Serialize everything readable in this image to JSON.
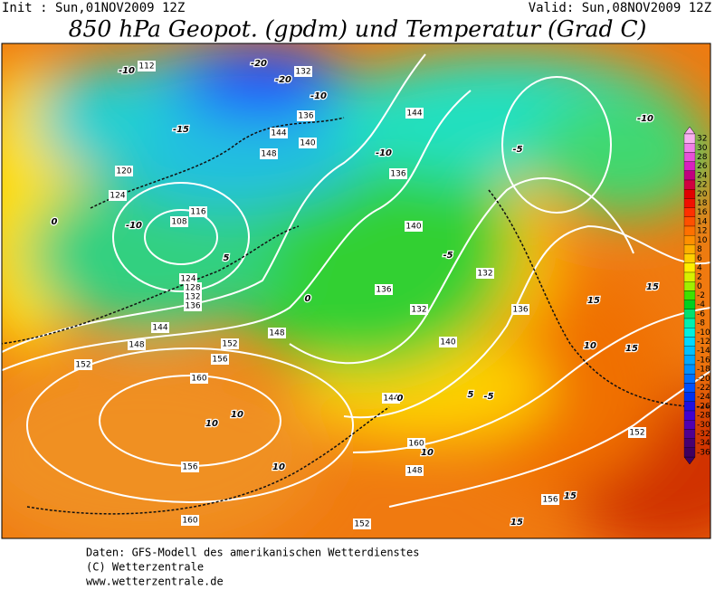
{
  "header": {
    "init": "Init : Sun,01NOV2009 12Z",
    "valid": "Valid: Sun,08NOV2009 12Z",
    "title": "850 hPa Geopot. (gpdm) und Temperatur (Grad C)"
  },
  "colorbar": {
    "labels": [
      32,
      30,
      28,
      26,
      24,
      22,
      20,
      18,
      16,
      14,
      12,
      10,
      8,
      6,
      4,
      2,
      0,
      -2,
      -4,
      -6,
      -8,
      -10,
      -12,
      -14,
      -16,
      -18,
      -20,
      -22,
      -24,
      -26,
      -28,
      -30,
      -32,
      -34,
      -36
    ],
    "colors": [
      "#f8b0f0",
      "#f080e8",
      "#e850d8",
      "#d820c0",
      "#c00080",
      "#d00040",
      "#e00000",
      "#f01000",
      "#ff3000",
      "#ff5000",
      "#ff7000",
      "#ff9000",
      "#ffb000",
      "#ffd000",
      "#fff000",
      "#d8f000",
      "#a0f000",
      "#40e000",
      "#00d020",
      "#00e070",
      "#00f0b0",
      "#00f0e0",
      "#00d8ff",
      "#00c0ff",
      "#00a8ff",
      "#0090ff",
      "#0070ff",
      "#0050ff",
      "#0030f0",
      "#2010e0",
      "#4000d0",
      "#5000b0",
      "#500090",
      "#480070",
      "#400060"
    ]
  },
  "map_labels": [
    112,
    120,
    124,
    108,
    116,
    124,
    128,
    132,
    136,
    144,
    148,
    152,
    156,
    160,
    132,
    136,
    144,
    140,
    148,
    136,
    140,
    132,
    136,
    140,
    144,
    148,
    152,
    156,
    160,
    152,
    160,
    156,
    144,
    148,
    152,
    132,
    136,
    10,
    10,
    10,
    15,
    15,
    15,
    15,
    10,
    5,
    0,
    0,
    -5,
    -10,
    -10,
    -15,
    -20,
    -20,
    -10,
    -5,
    5,
    0,
    -10,
    -5,
    -10,
    15,
    10
  ],
  "footer": [
    "Daten: GFS-Modell des amerikanischen Wetterdienstes",
    "(C) Wetterzentrale",
    "www.wetterzentrale.de"
  ]
}
